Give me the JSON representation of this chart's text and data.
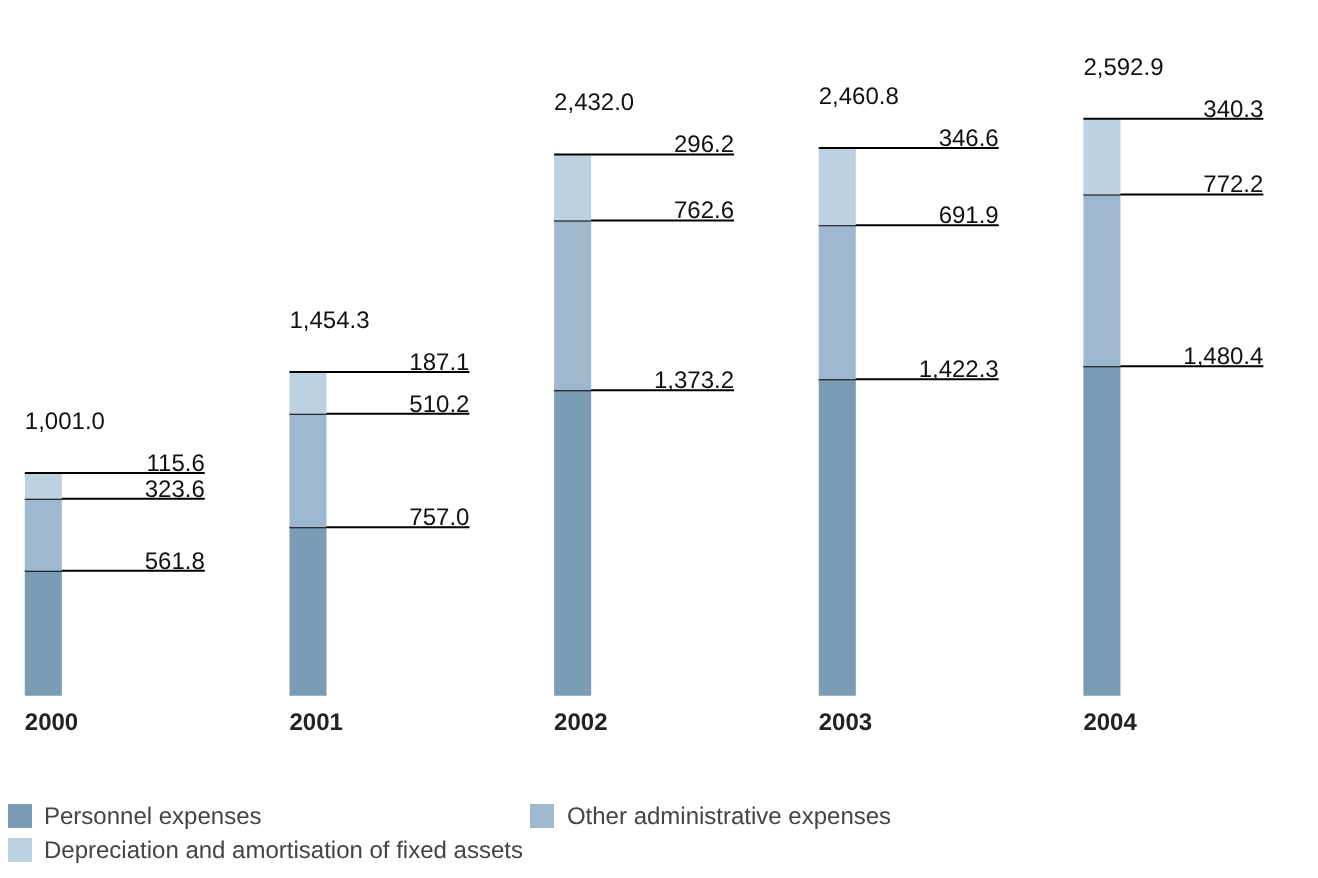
{
  "chart_data": {
    "type": "bar",
    "stacked": true,
    "legend": "bottom left",
    "categories": [
      "2000",
      "2001",
      "2002",
      "2003",
      "2004"
    ],
    "series": [
      {
        "name": "Personnel expenses",
        "color": "#7a9cb5",
        "values": [
          561.8,
          757.0,
          1373.2,
          1422.3,
          1480.4
        ],
        "value_labels": [
          "561.8",
          "757.0",
          "1,373.2",
          "1,422.3",
          "1,480.4"
        ]
      },
      {
        "name": "Other administrative expenses",
        "color": "#9db8cf",
        "values": [
          323.6,
          510.2,
          762.6,
          691.9,
          772.2
        ],
        "value_labels": [
          "323.6",
          "510.2",
          "762.6",
          "691.9",
          "772.2"
        ]
      },
      {
        "name": "Depreciation and amortisation of fixed assets",
        "color": "#bdd2e0",
        "values": [
          115.6,
          187.1,
          296.2,
          346.6,
          340.3
        ],
        "value_labels": [
          "115.6",
          "187.1",
          "296.2",
          "346.6",
          "340.3"
        ]
      }
    ],
    "totals": [
      "1,001.0",
      "1,454.3",
      "2,432.0",
      "2,460.8",
      "2,592.9"
    ]
  }
}
